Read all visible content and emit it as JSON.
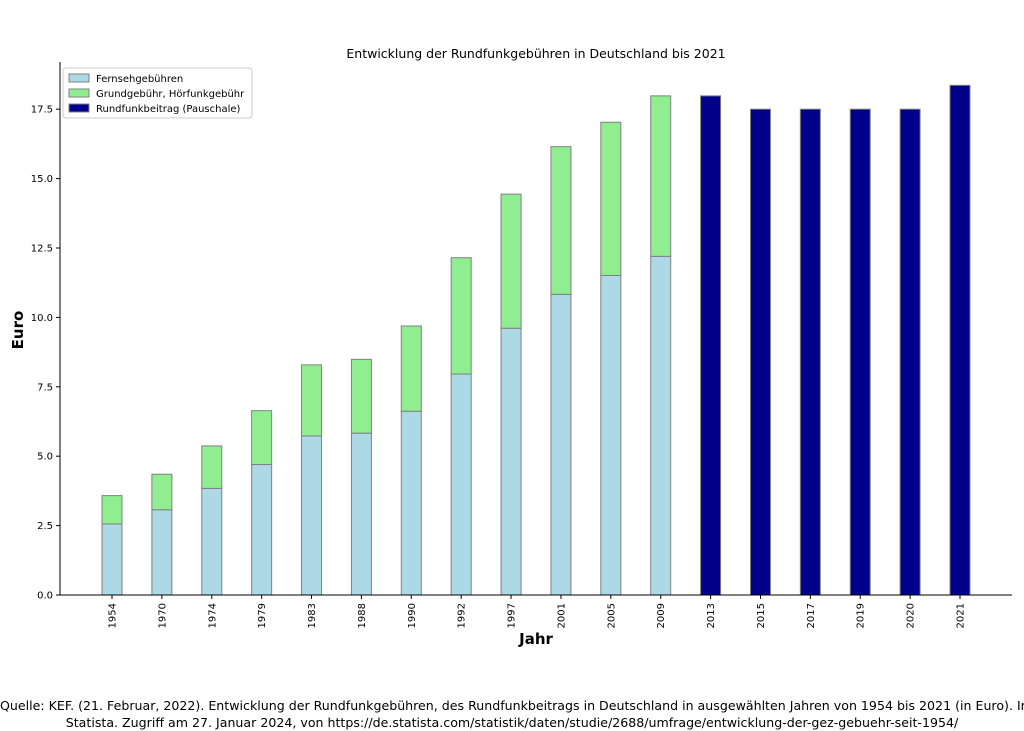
{
  "chart_data": {
    "type": "bar",
    "stacked": true,
    "title": "Entwicklung der Rundfunkgebühren in Deutschland bis 2021",
    "xlabel": "Jahr",
    "ylabel": "Euro",
    "ylim": [
      0,
      19.2
    ],
    "yticks": [
      "0.0",
      "2.5",
      "5.0",
      "7.5",
      "10.0",
      "12.5",
      "15.0",
      "17.5"
    ],
    "grid": false,
    "legend_position": "top-left",
    "categories": [
      "1954",
      "1970",
      "1974",
      "1979",
      "1983",
      "1988",
      "1990",
      "1992",
      "1997",
      "2001",
      "2005",
      "2009",
      "2013",
      "2015",
      "2017",
      "2019",
      "2020",
      "2021"
    ],
    "series": [
      {
        "name": "Fernsehgebühren",
        "color": "#add8e6",
        "values": [
          2.56,
          3.07,
          3.84,
          4.7,
          5.73,
          5.83,
          6.62,
          7.96,
          9.61,
          10.83,
          11.51,
          12.2,
          0,
          0,
          0,
          0,
          0,
          0
        ]
      },
      {
        "name": "Grundgebühr, Hörfunkgebühr",
        "color": "#90ee90",
        "values": [
          1.02,
          1.28,
          1.53,
          1.94,
          2.56,
          2.66,
          3.07,
          4.19,
          4.83,
          5.32,
          5.52,
          5.78,
          0,
          0,
          0,
          0,
          0,
          0
        ]
      },
      {
        "name": "Rundfunkbeitrag (Pauschale)",
        "color": "#00008b",
        "values": [
          0,
          0,
          0,
          0,
          0,
          0,
          0,
          0,
          0,
          0,
          0,
          0,
          17.98,
          17.5,
          17.5,
          17.5,
          17.5,
          18.36
        ]
      }
    ]
  },
  "source": {
    "line1": "Quelle: KEF. (21. Februar, 2022). Entwicklung der Rundfunkgebühren, des Rundfunkbeitrags in Deutschland in ausgewählten Jahren von 1954 bis 2021 (in Euro). In",
    "line2": "Statista. Zugriff am 27. Januar 2024, von https://de.statista.com/statistik/daten/studie/2688/umfrage/entwicklung-der-gez-gebuehr-seit-1954/"
  }
}
